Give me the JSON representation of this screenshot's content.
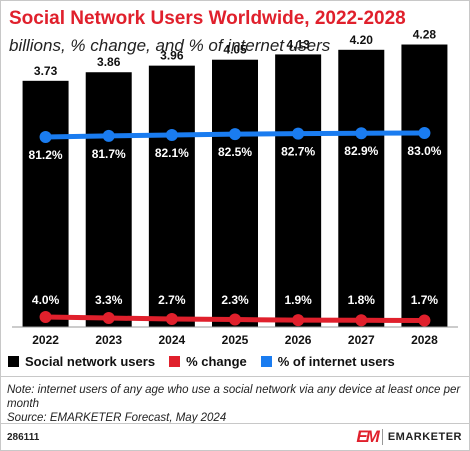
{
  "header": {
    "title": "Social Network Users Worldwide, 2022-2028",
    "subtitle": "billions, % change, and % of internet users"
  },
  "chart_data": {
    "type": "bar",
    "categories": [
      "2022",
      "2023",
      "2024",
      "2025",
      "2026",
      "2027",
      "2028"
    ],
    "series": [
      {
        "name": "Social network users",
        "type": "bar",
        "values": [
          3.73,
          3.86,
          3.96,
          4.05,
          4.13,
          4.2,
          4.28
        ],
        "labels": [
          "3.73",
          "3.86",
          "3.96",
          "4.05",
          "4.13",
          "4.20",
          "4.28"
        ],
        "color": "#000000"
      },
      {
        "name": "% change",
        "type": "line",
        "values": [
          4.0,
          3.3,
          2.7,
          2.3,
          1.9,
          1.8,
          1.7
        ],
        "labels": [
          "4.0%",
          "3.3%",
          "2.7%",
          "2.3%",
          "1.9%",
          "1.8%",
          "1.7%"
        ],
        "color": "#e0202c"
      },
      {
        "name": "% of internet users",
        "type": "line",
        "values": [
          81.2,
          81.7,
          82.1,
          82.5,
          82.7,
          82.9,
          83.0
        ],
        "labels": [
          "81.2%",
          "81.7%",
          "82.1%",
          "82.5%",
          "82.7%",
          "82.9%",
          "83.0%"
        ],
        "color": "#1a7cf0"
      }
    ],
    "grid": false,
    "legend_position": "bottom-left"
  },
  "legend": [
    {
      "label": "Social network users",
      "color": "#000000"
    },
    {
      "label": "% change",
      "color": "#e0202c"
    },
    {
      "label": "% of internet users",
      "color": "#1a7cf0"
    }
  ],
  "footer": {
    "note": "Note: internet users of any age who use a social network via any device at least once per month",
    "source": "Source: EMARKETER Forecast, May 2024",
    "chart_id": "286111",
    "brand_mark": "EM",
    "brand_name": "EMARKETER"
  },
  "colors": {
    "accent": "#e0202c",
    "blue": "#1a7cf0",
    "bar": "#000000"
  }
}
